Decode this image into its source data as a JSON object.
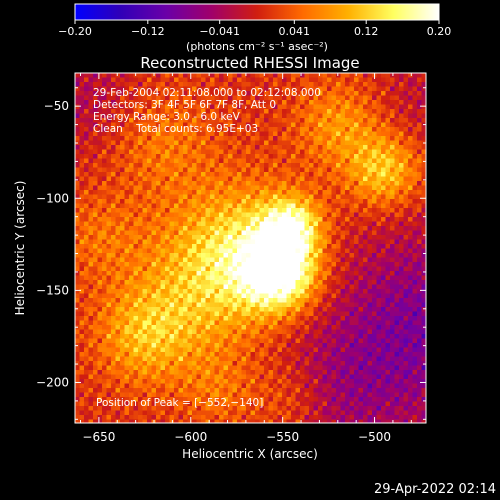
{
  "chart_data": {
    "type": "heatmap",
    "title": "Reconstructed RHESSI Image",
    "xlabel": "Heliocentric X (arcsec)",
    "ylabel": "Heliocentric Y (arcsec)",
    "xlim": [
      -663,
      -472
    ],
    "ylim": [
      -222,
      -32
    ],
    "xticks": [
      -650,
      -600,
      -550,
      -500
    ],
    "xtick_labels": [
      "−650",
      "−600",
      "−550",
      "−500"
    ],
    "yticks": [
      -50,
      -100,
      -150,
      -200
    ],
    "ytick_labels": [
      "−50",
      "−100",
      "−150",
      "−200"
    ],
    "colorbar": {
      "range": [
        -0.2,
        0.2
      ],
      "ticks": [
        -0.2,
        -0.12,
        -0.041,
        0.041,
        0.12,
        0.2
      ],
      "tick_labels": [
        "−0.20",
        "−0.12",
        "−0.041",
        "0.041",
        "0.12",
        "0.20"
      ],
      "unit_label": "(photons cm⁻² s⁻¹ asec⁻²)",
      "colormap": [
        "#0000ff",
        "#3000b8",
        "#6a00a8",
        "#a0006a",
        "#d01e10",
        "#ff6a00",
        "#ffb000",
        "#ffff60",
        "#ffffff"
      ]
    },
    "annotations": [
      "29-Feb-2004 02:11:08.000 to 02:12:08.000",
      "Detectors: 3F 4F 5F 6F 7F 8F, Att 0",
      "Energy Range: 3.0 - 6.0 keV",
      "Clean    Total counts: 6.95E+03",
      "Position of Peak = [−552,−140]"
    ],
    "peak": {
      "x": -552,
      "y": -140
    },
    "sources": [
      {
        "x": -552,
        "y": -140,
        "sigma": 14,
        "value": 0.2
      },
      {
        "x": -545,
        "y": -115,
        "sigma": 11,
        "value": 0.14
      },
      {
        "x": -570,
        "y": -125,
        "sigma": 24,
        "value": 0.1
      },
      {
        "x": -495,
        "y": -85,
        "sigma": 14,
        "value": 0.11
      },
      {
        "x": -520,
        "y": -60,
        "sigma": 16,
        "value": 0.07
      },
      {
        "x": -625,
        "y": -175,
        "sigma": 18,
        "value": 0.08
      },
      {
        "x": -595,
        "y": -150,
        "sigma": 28,
        "value": 0.08
      },
      {
        "x": -615,
        "y": -70,
        "sigma": 20,
        "value": 0.05
      },
      {
        "x": -545,
        "y": -210,
        "sigma": 16,
        "value": 0.05
      },
      {
        "x": -650,
        "y": -120,
        "sigma": 16,
        "value": 0.04
      },
      {
        "x": -585,
        "y": -205,
        "sigma": 14,
        "value": 0.04
      }
    ],
    "background_sources": [
      {
        "x": -472,
        "y": -170,
        "sigma": 38,
        "value": -0.09
      },
      {
        "x": -525,
        "y": -208,
        "sigma": 26,
        "value": -0.05
      },
      {
        "x": -660,
        "y": -45,
        "sigma": 22,
        "value": -0.04
      },
      {
        "x": -470,
        "y": -45,
        "sigma": 20,
        "value": -0.03
      }
    ]
  },
  "footer": {
    "timestamp": "29-Apr-2022 02:14"
  }
}
